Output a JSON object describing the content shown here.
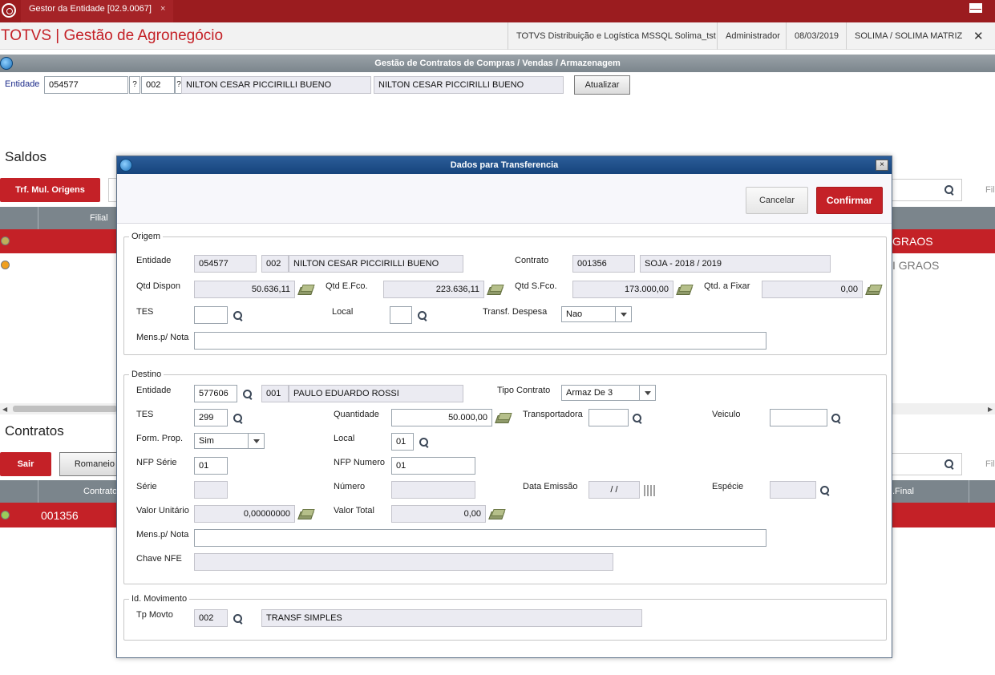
{
  "tabbar": {
    "tab_title": "Gestor da Entidade [02.9.0067]",
    "tab_close": "×"
  },
  "header": {
    "app_title": "TOTVS | Gestão de Agronegócio",
    "environment": "TOTVS Distribuição e Logística MSSQL Solima_tst",
    "user": "Administrador",
    "date": "08/03/2019",
    "company": "SOLIMA / SOLIMA MATRIZ",
    "close": "✕"
  },
  "screen": {
    "title": "Gestão de Contratos de Compras / Vendas / Armazenagem",
    "entity_label": "Entidade",
    "entity_code": "054577",
    "entity_store": "002",
    "entity_name1": "NILTON CESAR PICCIRILLI BUENO",
    "entity_name2": "NILTON CESAR PICCIRILLI BUENO",
    "query_mark": "?",
    "refresh_button": "Atualizar"
  },
  "saldos": {
    "title": "Saldos",
    "trf_button": "Trf. Mul. Origens",
    "col_filial": "Filial",
    "row1_right": "GRAOS",
    "row2_right": "I GRAOS",
    "filter_cut": "Fil"
  },
  "contratos": {
    "title": "Contratos",
    "exit_button": "Sair",
    "romaneio_button": "Romaneio",
    "col_contrato": "Contrato",
    "col_final": ".Final",
    "row1_contract": "001356",
    "filter_cut": "Fil"
  },
  "dialog": {
    "title": "Dados para Transferencia",
    "close": "×",
    "cancel_button": "Cancelar",
    "confirm_button": "Confirmar",
    "origem": {
      "group": "Origem",
      "entidade_label": "Entidade",
      "entidade_code": "054577",
      "entidade_store": "002",
      "entidade_name": "NILTON CESAR PICCIRILLI BUENO",
      "contrato_label": "Contrato",
      "contrato_code": "001356",
      "contrato_desc": "SOJA  - 2018 / 2019",
      "qtd_dispon_label": "Qtd Dispon",
      "qtd_dispon": "50.636,11",
      "qtd_efco_label": "Qtd E.Fco.",
      "qtd_efco": "223.636,11",
      "qtd_sfco_label": "Qtd S.Fco.",
      "qtd_sfco": "173.000,00",
      "qtd_fixar_label": "Qtd. a Fixar",
      "qtd_fixar": "0,00",
      "tes_label": "TES",
      "local_label": "Local",
      "transf_label": "Transf. Despesa",
      "transf_value": "Nao",
      "mens_label": "Mens.p/ Nota"
    },
    "destino": {
      "group": "Destino",
      "entidade_label": "Entidade",
      "entidade_code": "577606",
      "entidade_store": "001",
      "entidade_name": "PAULO EDUARDO ROSSI",
      "tipo_label": "Tipo Contrato",
      "tipo_value": "Armaz De 3",
      "tes_label": "TES",
      "tes_value": "299",
      "quantidade_label": "Quantidade",
      "quantidade_value": "50.000,00",
      "transportadora_label": "Transportadora",
      "veiculo_label": "Veiculo",
      "formprop_label": "Form. Prop.",
      "formprop_value": "Sim",
      "local_label": "Local",
      "local_value": "01",
      "nfp_serie_label": "NFP Série",
      "nfp_serie_value": "01",
      "nfp_numero_label": "NFP Numero",
      "nfp_numero_value": "01",
      "serie_label": "Série",
      "numero_label": "Número",
      "data_emissao_label": "Data Emissão",
      "data_emissao_value": " / /",
      "especie_label": "Espécie",
      "valor_unit_label": "Valor Unitário",
      "valor_unit_value": "0,00000000",
      "valor_total_label": "Valor Total",
      "valor_total_value": "0,00",
      "mens_label": "Mens.p/ Nota",
      "chave_label": "Chave NFE"
    },
    "movimento": {
      "group": "Id. Movimento",
      "tp_label": "Tp Movto",
      "tp_code": "002",
      "tp_desc": "TRANSF SIMPLES"
    }
  }
}
